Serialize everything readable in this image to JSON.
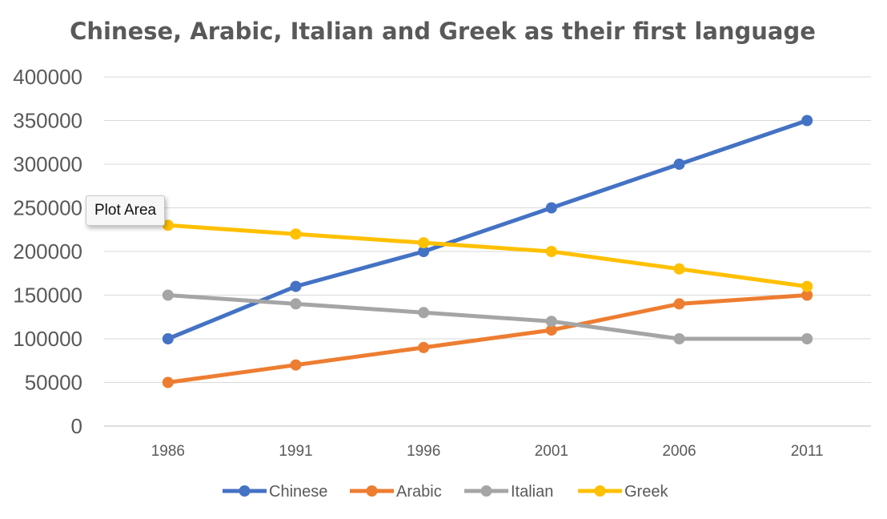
{
  "chart_data": {
    "type": "line",
    "title": "Chinese, Arabic, Italian and Greek as their first language",
    "xlabel": "",
    "ylabel": "",
    "categories": [
      "1986",
      "1991",
      "1996",
      "2001",
      "2006",
      "2011"
    ],
    "y_ticks": [
      "0",
      "50000",
      "100000",
      "150000",
      "200000",
      "250000",
      "300000",
      "350000",
      "400000"
    ],
    "ylim": [
      0,
      400000
    ],
    "grid": true,
    "legend_position": "bottom",
    "series": [
      {
        "name": "Chinese",
        "color": "#4472C4",
        "values": [
          100000,
          160000,
          200000,
          250000,
          300000,
          350000
        ]
      },
      {
        "name": "Arabic",
        "color": "#ED7D31",
        "values": [
          50000,
          70000,
          90000,
          110000,
          140000,
          150000
        ]
      },
      {
        "name": "Italian",
        "color": "#A5A5A5",
        "values": [
          150000,
          140000,
          130000,
          120000,
          100000,
          100000
        ]
      },
      {
        "name": "Greek",
        "color": "#FFC000",
        "values": [
          230000,
          220000,
          210000,
          200000,
          180000,
          160000
        ]
      }
    ]
  },
  "tooltip": {
    "label": "Plot Area"
  }
}
